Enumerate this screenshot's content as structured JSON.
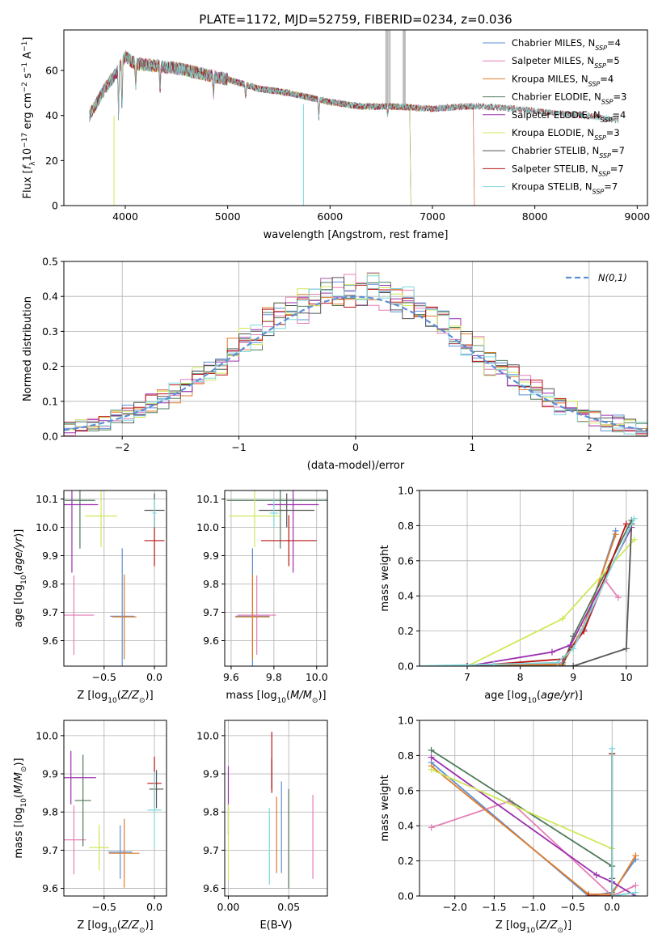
{
  "figure": {
    "title": "PLATE=1172, MJD=52759, FIBERID=0234, z=0.036"
  },
  "models": [
    {
      "name": "Chabrier MILES",
      "nssp": "4",
      "color": "#5b8fd6"
    },
    {
      "name": "Salpeter MILES",
      "nssp": "5",
      "color": "#e57fb8"
    },
    {
      "name": "Kroupa MILES",
      "nssp": "4",
      "color": "#e07b28"
    },
    {
      "name": "Chabrier ELODIE",
      "nssp": "3",
      "color": "#4e7a5a"
    },
    {
      "name": "Salpeter ELODIE",
      "nssp": "4",
      "color": "#9b2fae"
    },
    {
      "name": "Kroupa ELODIE",
      "nssp": "3",
      "color": "#cfe85a"
    },
    {
      "name": "Chabrier STELIB",
      "nssp": "7",
      "color": "#555555"
    },
    {
      "name": "Salpeter STELIB",
      "nssp": "7",
      "color": "#b81414"
    },
    {
      "name": "Kroupa STELIB",
      "nssp": "7",
      "color": "#7fd8dc"
    }
  ],
  "legend_suffix": "N",
  "legend_sub": "SSP",
  "chart_data": [
    {
      "id": "spectrum",
      "type": "line",
      "xlabel": "wavelength [Angstrom, rest frame]",
      "ylabel": "Flux [f",
      "ylabel_parts": [
        "Flux [f",
        "λ",
        "10",
        "−17",
        " erg cm",
        "−2",
        " s",
        "−1",
        " A",
        "−1",
        "]"
      ],
      "xlim": [
        3400,
        9100
      ],
      "ylim": [
        0,
        78
      ],
      "xticks": [
        4000,
        5000,
        6000,
        7000,
        8000,
        9000
      ],
      "yticks": [
        0,
        20,
        40,
        60
      ],
      "grid": false,
      "legend": "top-right",
      "continuum": {
        "x": [
          3650,
          3700,
          3800,
          3900,
          4000,
          4100,
          4300,
          4500,
          4800,
          5000,
          5300,
          5600,
          6000,
          6300,
          6600,
          7000,
          7300,
          7500,
          7800,
          8000,
          8200,
          8500,
          8800
        ],
        "y": [
          40,
          44,
          52,
          58,
          66,
          63,
          62,
          61,
          58,
          56,
          52,
          50,
          46,
          44,
          44,
          43,
          44,
          44,
          43,
          42,
          41,
          40,
          38
        ]
      },
      "model_end_wavelength": [
        7400,
        7400,
        7400,
        6780,
        6780,
        6780,
        8820,
        8820,
        8820
      ]
    },
    {
      "id": "residuals",
      "type": "bar",
      "xlabel": "(data-model)/error",
      "ylabel": "Normed distribution",
      "xlim": [
        -2.5,
        2.5
      ],
      "ylim": [
        0,
        0.5
      ],
      "xticks": [
        -2,
        -1,
        0,
        1,
        2
      ],
      "xtick_labels": [
        "−2",
        "−1",
        "0",
        "1",
        "2"
      ],
      "yticks": [
        0.0,
        0.1,
        0.2,
        0.3,
        0.4,
        0.5
      ],
      "ytick_labels": [
        "0.0",
        "0.1",
        "0.2",
        "0.3",
        "0.4",
        "0.5"
      ],
      "grid": true,
      "legend": "top-right",
      "reference_curve": {
        "name": "N(0,1)",
        "mean": 0,
        "sigma": 1,
        "color": "#5b8fd6"
      },
      "bin_width": 0.1
    },
    {
      "id": "age-vs-Z",
      "type": "scatter",
      "xlabel": "Z [log10(Z/Z⊙)]",
      "ylabel": "age [log10(age/yr)]",
      "xlim": [
        -0.9,
        0.12
      ],
      "ylim": [
        9.51,
        10.13
      ],
      "xticks": [
        -0.5,
        0.0
      ],
      "xtick_labels": [
        "−0.5",
        "0.0"
      ],
      "yticks": [
        9.6,
        9.7,
        9.8,
        9.9,
        10.0,
        10.1
      ],
      "ytick_labels": [
        "9.6",
        "9.7",
        "9.8",
        "9.9",
        "10.0",
        "10.1"
      ],
      "grid": true,
      "points": [
        {
          "model": 0,
          "x": -0.32,
          "y": 9.686,
          "xerr": 0.12,
          "yerr": 0.24
        },
        {
          "model": 1,
          "x": -0.8,
          "y": 9.69,
          "xerr": 0.2,
          "yerr": 0.14
        },
        {
          "model": 2,
          "x": -0.3,
          "y": 9.684,
          "xerr": 0.12,
          "yerr": 0.15
        },
        {
          "model": 3,
          "x": -0.74,
          "y": 10.095,
          "xerr": 0.15,
          "yerr": 0.17
        },
        {
          "model": 4,
          "x": -0.82,
          "y": 10.08,
          "xerr": 0.26,
          "yerr": 0.24
        },
        {
          "model": 5,
          "x": -0.53,
          "y": 10.04,
          "xerr": 0.16,
          "yerr": 0.11
        },
        {
          "model": 6,
          "x": 0.0,
          "y": 10.06,
          "xerr": 0.1,
          "yerr": 0.06
        },
        {
          "model": 7,
          "x": 0.0,
          "y": 9.953,
          "xerr": 0.1,
          "yerr": 0.09
        },
        {
          "model": 8,
          "x": 0.0,
          "y": 10.05,
          "xerr": 0.02,
          "yerr": 0.05
        }
      ]
    },
    {
      "id": "age-vs-mass",
      "type": "scatter",
      "xlabel": "mass [log10(M/M⊙)]",
      "ylabel": "",
      "xlim": [
        9.57,
        10.05
      ],
      "ylim": [
        9.51,
        10.13
      ],
      "xticks": [
        9.6,
        9.8,
        10.0
      ],
      "xtick_labels": [
        "9.6",
        "9.8",
        "10.0"
      ],
      "yticks": [
        9.6,
        9.7,
        9.8,
        9.9,
        10.0,
        10.1
      ],
      "ytick_labels": [
        "9.6",
        "9.7",
        "9.8",
        "9.9",
        "10.0",
        "10.1"
      ],
      "grid": true,
      "points": [
        {
          "model": 0,
          "x": 9.7,
          "y": 9.686,
          "xerr": 0.08,
          "yerr": 0.24
        },
        {
          "model": 1,
          "x": 9.72,
          "y": 9.69,
          "xerr": 0.09,
          "yerr": 0.14
        },
        {
          "model": 2,
          "x": 9.7,
          "y": 9.684,
          "xerr": 0.08,
          "yerr": 0.15
        },
        {
          "model": 3,
          "x": 9.83,
          "y": 10.095,
          "xerr": 0.25,
          "yerr": 0.17
        },
        {
          "model": 4,
          "x": 9.89,
          "y": 10.08,
          "xerr": 0.12,
          "yerr": 0.24
        },
        {
          "model": 5,
          "x": 9.71,
          "y": 10.04,
          "xerr": 0.12,
          "yerr": 0.11
        },
        {
          "model": 6,
          "x": 9.86,
          "y": 10.06,
          "xerr": 0.13,
          "yerr": 0.06
        },
        {
          "model": 7,
          "x": 9.87,
          "y": 9.953,
          "xerr": 0.13,
          "yerr": 0.09
        },
        {
          "model": 8,
          "x": 9.8,
          "y": 10.05,
          "xerr": 0.02,
          "yerr": 0.05
        }
      ]
    },
    {
      "id": "mass-weight-vs-age",
      "type": "line",
      "xlabel": "age [log10(age/yr)]",
      "ylabel": "mass weight",
      "xlim": [
        6.1,
        10.4
      ],
      "ylim": [
        0,
        1.0
      ],
      "xticks": [
        7,
        8,
        9,
        10
      ],
      "yticks": [
        0.0,
        0.2,
        0.4,
        0.6,
        0.8,
        1.0
      ],
      "ytick_labels": [
        "0.0",
        "0.2",
        "0.4",
        "0.6",
        "0.8",
        "1.0"
      ],
      "grid": true,
      "series": [
        {
          "model": 0,
          "x": [
            7.0,
            8.8,
            9.2,
            9.8
          ],
          "y": [
            0.0,
            0.02,
            0.21,
            0.77
          ]
        },
        {
          "model": 1,
          "x": [
            7.0,
            8.8,
            9.2,
            9.6,
            9.85
          ],
          "y": [
            0.0,
            0.02,
            0.2,
            0.49,
            0.39
          ]
        },
        {
          "model": 2,
          "x": [
            7.0,
            8.8,
            9.2,
            9.8
          ],
          "y": [
            0.0,
            0.01,
            0.23,
            0.75
          ]
        },
        {
          "model": 3,
          "x": [
            7.0,
            8.8,
            9.0,
            10.1
          ],
          "y": [
            0.0,
            0.0,
            0.17,
            0.83
          ]
        },
        {
          "model": 4,
          "x": [
            7.0,
            8.6,
            8.95,
            10.1
          ],
          "y": [
            0.0,
            0.08,
            0.12,
            0.79
          ]
        },
        {
          "model": 5,
          "x": [
            7.0,
            8.8,
            10.15
          ],
          "y": [
            0.0,
            0.27,
            0.72
          ]
        },
        {
          "model": 6,
          "x": [
            7.0,
            8.8,
            9.0,
            10.0,
            10.1
          ],
          "y": [
            0.0,
            0.0,
            0.0,
            0.1,
            0.81
          ]
        },
        {
          "model": 7,
          "x": [
            7.0,
            8.8,
            9.2,
            10.0
          ],
          "y": [
            0.0,
            0.04,
            0.2,
            0.81
          ]
        },
        {
          "model": 8,
          "x": [
            6.0,
            7.5,
            8.7,
            9.0,
            10.15
          ],
          "y": [
            0.0,
            0.01,
            0.02,
            0.1,
            0.84
          ]
        }
      ]
    },
    {
      "id": "mass-vs-Z",
      "type": "scatter",
      "xlabel": "Z [log10(Z/Z⊙)]",
      "ylabel": "mass [log10(M/M⊙)]",
      "xlim": [
        -0.9,
        0.12
      ],
      "ylim": [
        9.58,
        10.04
      ],
      "xticks": [
        -0.5,
        0.0
      ],
      "xtick_labels": [
        "−0.5",
        "0.0"
      ],
      "yticks": [
        9.6,
        9.7,
        9.8,
        9.9,
        10.0
      ],
      "ytick_labels": [
        "9.6",
        "9.7",
        "9.8",
        "9.9",
        "10.0"
      ],
      "grid": true,
      "points": [
        {
          "model": 0,
          "x": -0.34,
          "y": 9.695,
          "xerr": 0.12,
          "yerr": 0.07
        },
        {
          "model": 1,
          "x": -0.8,
          "y": 9.727,
          "xerr": 0.12,
          "yerr": 0.09
        },
        {
          "model": 2,
          "x": -0.3,
          "y": 9.692,
          "xerr": 0.15,
          "yerr": 0.09
        },
        {
          "model": 3,
          "x": -0.71,
          "y": 9.83,
          "xerr": 0.08,
          "yerr": 0.12
        },
        {
          "model": 4,
          "x": -0.83,
          "y": 9.89,
          "xerr": 0.25,
          "yerr": 0.07
        },
        {
          "model": 5,
          "x": -0.55,
          "y": 9.707,
          "xerr": 0.1,
          "yerr": 0.06
        },
        {
          "model": 6,
          "x": 0.02,
          "y": 9.86,
          "xerr": 0.07,
          "yerr": 0.05
        },
        {
          "model": 7,
          "x": 0.0,
          "y": 9.875,
          "xerr": 0.07,
          "yerr": 0.07
        },
        {
          "model": 8,
          "x": 0.0,
          "y": 9.805,
          "xerr": 0.07,
          "yerr": 0.1
        }
      ]
    },
    {
      "id": "mass-vs-EBV",
      "type": "scatter",
      "xlabel": "E(B-V)",
      "ylabel": "",
      "xlim": [
        -0.003,
        0.082
      ],
      "ylim": [
        9.58,
        10.04
      ],
      "xticks": [
        0.0,
        0.05
      ],
      "xtick_labels": [
        "0.00",
        "0.05"
      ],
      "yticks": [
        9.6,
        9.7,
        9.8,
        9.9,
        10.0
      ],
      "ytick_labels": [
        "9.6",
        "9.7",
        "9.8",
        "9.9",
        "10.0"
      ],
      "grid": true,
      "points": [
        {
          "model": 0,
          "x": 0.044,
          "y": 9.76,
          "xerr": 0.0,
          "yerr": 0.12
        },
        {
          "model": 1,
          "x": 0.07,
          "y": 9.735,
          "xerr": 0.0,
          "yerr": 0.11
        },
        {
          "model": 2,
          "x": 0.04,
          "y": 9.74,
          "xerr": 0.0,
          "yerr": 0.1
        },
        {
          "model": 3,
          "x": 0.05,
          "y": 9.73,
          "xerr": 0.0,
          "yerr": 0.13
        },
        {
          "model": 4,
          "x": 0.0,
          "y": 9.83,
          "xerr": 0.0,
          "yerr": 0.09
        },
        {
          "model": 5,
          "x": 0.0,
          "y": 9.72,
          "xerr": 0.0,
          "yerr": 0.1
        },
        {
          "model": 6,
          "x": 0.036,
          "y": 9.9,
          "xerr": 0.0,
          "yerr": 0.04
        },
        {
          "model": 7,
          "x": 0.036,
          "y": 9.93,
          "xerr": 0.0,
          "yerr": 0.08
        },
        {
          "model": 8,
          "x": 0.034,
          "y": 9.71,
          "xerr": 0.0,
          "yerr": 0.1
        }
      ]
    },
    {
      "id": "mass-weight-vs-Z",
      "type": "line",
      "xlabel": "Z [log10(Z/Z⊙)]",
      "ylabel": "mass weight",
      "xlim": [
        -2.45,
        0.45
      ],
      "ylim": [
        0,
        1.0
      ],
      "xticks": [
        -2.0,
        -1.5,
        -1.0,
        -0.5,
        0.0
      ],
      "xtick_labels": [
        "−2.0",
        "−1.5",
        "−1.0",
        "−0.5",
        "0.0"
      ],
      "yticks": [
        0.0,
        0.2,
        0.4,
        0.6,
        0.8,
        1.0
      ],
      "ytick_labels": [
        "0.0",
        "0.2",
        "0.4",
        "0.6",
        "0.8",
        "1.0"
      ],
      "grid": true,
      "series": [
        {
          "model": 0,
          "x": [
            -2.3,
            -0.3,
            0.0,
            0.3
          ],
          "y": [
            0.76,
            0.0,
            0.02,
            0.21
          ]
        },
        {
          "model": 1,
          "x": [
            -2.3,
            -1.3,
            0.0,
            0.3
          ],
          "y": [
            0.39,
            0.54,
            0.0,
            0.06
          ]
        },
        {
          "model": 2,
          "x": [
            -2.3,
            -0.3,
            0.0,
            0.3
          ],
          "y": [
            0.74,
            0.01,
            0.01,
            0.23
          ]
        },
        {
          "model": 3,
          "x": [
            -2.3,
            0.0,
            0.0
          ],
          "y": [
            0.83,
            0.17,
            0.0
          ]
        },
        {
          "model": 4,
          "x": [
            -2.3,
            -0.2,
            0.0,
            0.3
          ],
          "y": [
            0.79,
            0.12,
            0.08,
            0.0
          ]
        },
        {
          "model": 5,
          "x": [
            -2.3,
            0.0
          ],
          "y": [
            0.72,
            0.27
          ]
        },
        {
          "model": 6,
          "x": [
            0.0,
            0.0,
            0.0
          ],
          "y": [
            0.81,
            0.1,
            0.0
          ]
        },
        {
          "model": 7,
          "x": [
            -0.3,
            0.0,
            0.0
          ],
          "y": [
            0.0,
            0.0,
            0.81
          ]
        },
        {
          "model": 8,
          "x": [
            0.0,
            0.0,
            0.3
          ],
          "y": [
            0.84,
            0.0,
            0.02
          ]
        }
      ]
    }
  ]
}
